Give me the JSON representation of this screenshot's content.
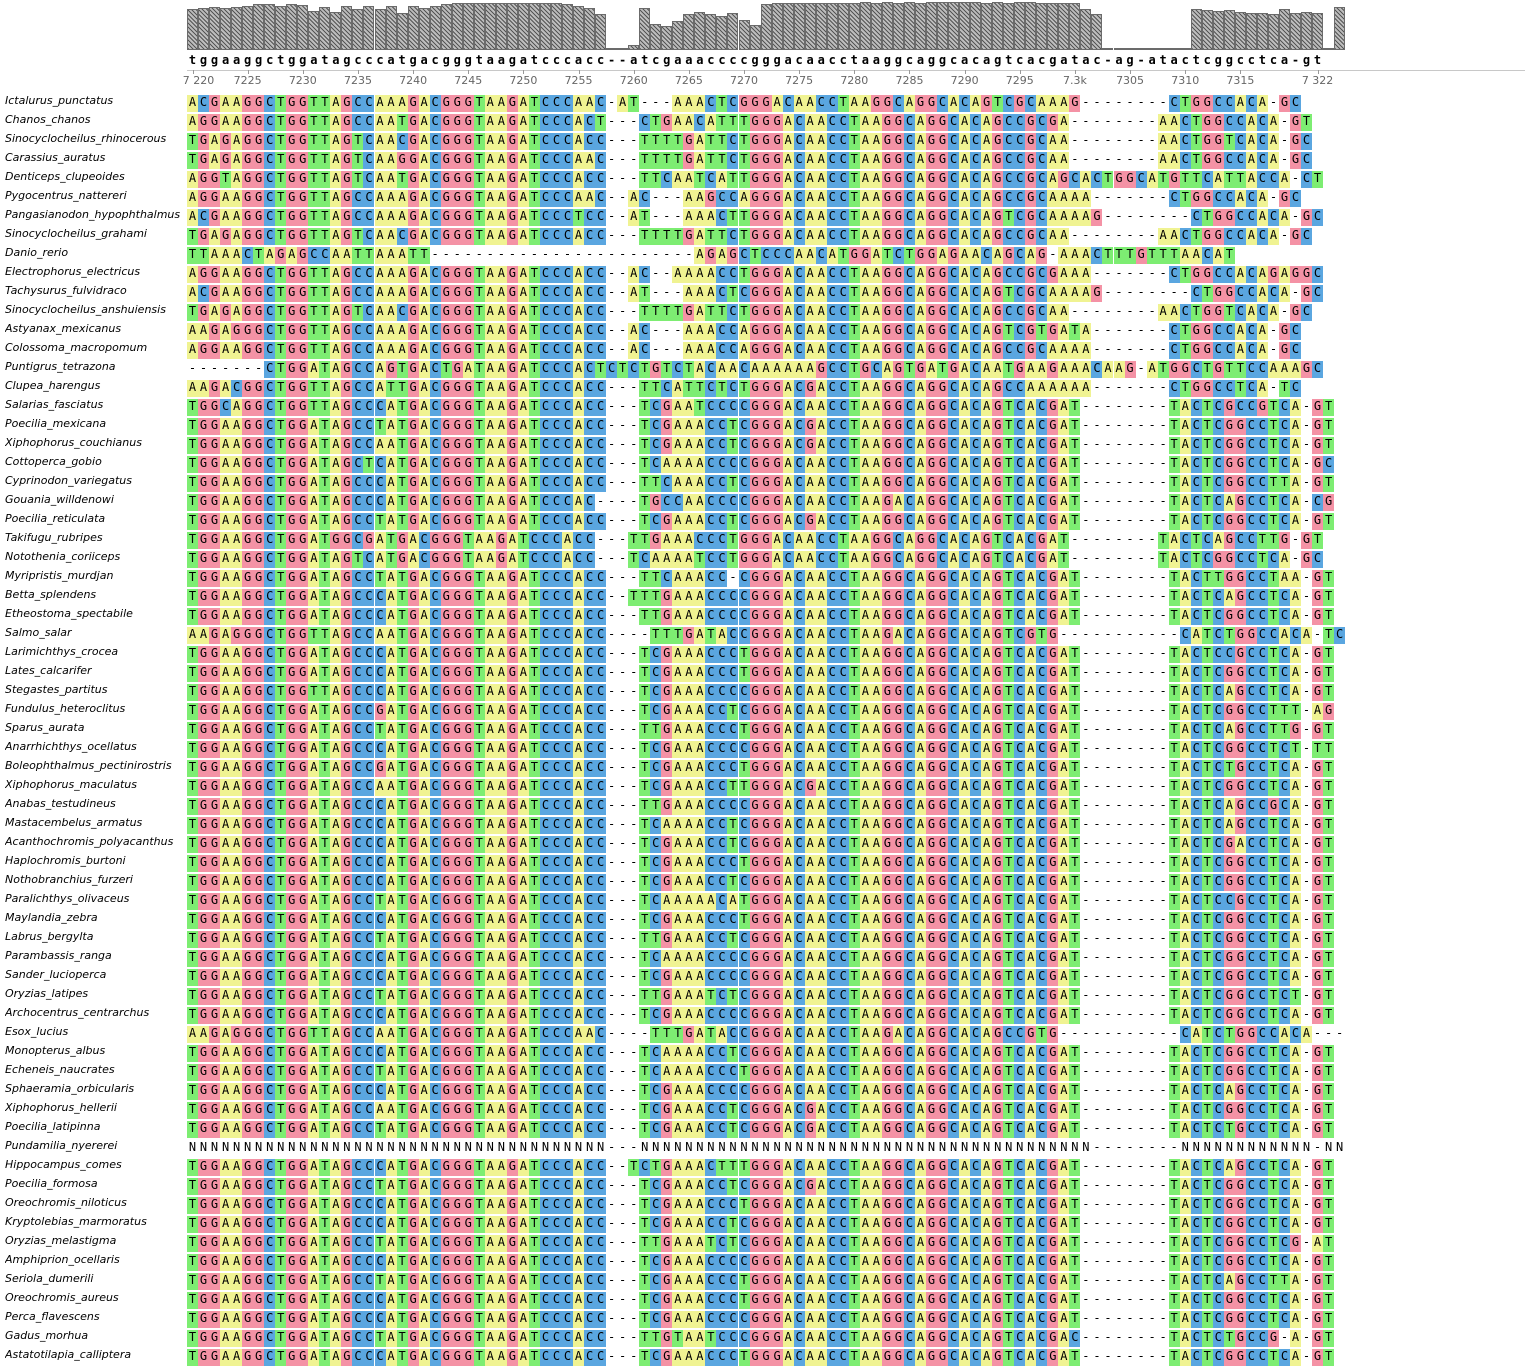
{
  "app": {
    "view": "multiple-sequence-alignment",
    "colors": {
      "A": "#f0f392",
      "C": "#5aa6e0",
      "G": "#f492a5",
      "T": "#7ded72",
      "N": "#ffffff",
      "-": "#ffffff"
    }
  },
  "ruler": {
    "labels": [
      {
        "pos": 7220,
        "label": "7 220"
      },
      {
        "pos": 7225,
        "label": "7225"
      },
      {
        "pos": 7230,
        "label": "7230"
      },
      {
        "pos": 7235,
        "label": "7235"
      },
      {
        "pos": 7240,
        "label": "7240"
      },
      {
        "pos": 7245,
        "label": "7245"
      },
      {
        "pos": 7250,
        "label": "7250"
      },
      {
        "pos": 7255,
        "label": "7255"
      },
      {
        "pos": 7260,
        "label": "7260"
      },
      {
        "pos": 7265,
        "label": "7265"
      },
      {
        "pos": 7270,
        "label": "7270"
      },
      {
        "pos": 7275,
        "label": "7275"
      },
      {
        "pos": 7280,
        "label": "7280"
      },
      {
        "pos": 7285,
        "label": "7285"
      },
      {
        "pos": 7290,
        "label": "7290"
      },
      {
        "pos": 7295,
        "label": "7295"
      },
      {
        "pos": 7300,
        "label": "7.3k"
      },
      {
        "pos": 7305,
        "label": "7305"
      },
      {
        "pos": 7310,
        "label": "7310"
      },
      {
        "pos": 7315,
        "label": "7315"
      },
      {
        "pos": 7322,
        "label": "7 322"
      }
    ],
    "start": 7220
  },
  "consensus": "tggaaggctggatagcccatgacgggtaagatcccacc--atcgaaaccccgggacaacctaaggcaggcacagtcacgatac-ag-atactcggcctca-gt",
  "conservation": [
    0.85,
    0.88,
    0.9,
    0.88,
    0.9,
    0.92,
    0.95,
    0.95,
    0.92,
    0.95,
    0.93,
    0.82,
    0.9,
    0.8,
    0.92,
    0.85,
    0.92,
    0.85,
    0.92,
    0.78,
    0.92,
    0.88,
    0.92,
    0.95,
    0.98,
    0.98,
    0.97,
    0.98,
    0.97,
    0.98,
    0.98,
    0.98,
    0.97,
    0.98,
    0.95,
    0.92,
    0.88,
    0.75,
    0.02,
    0.02,
    0.1,
    0.88,
    0.55,
    0.5,
    0.6,
    0.75,
    0.8,
    0.75,
    0.7,
    0.78,
    0.62,
    0.52,
    0.95,
    0.97,
    0.98,
    0.97,
    0.98,
    0.97,
    0.98,
    0.97,
    0.98,
    0.99,
    0.98,
    0.99,
    0.98,
    0.99,
    0.98,
    0.99,
    1.0,
    0.99,
    1.0,
    0.99,
    0.98,
    1.0,
    0.98,
    1.0,
    1.0,
    0.98,
    0.97,
    0.98,
    0.98,
    0.85,
    0.75,
    0.02,
    0.02,
    0.02,
    0.02,
    0.02,
    0.02,
    0.02,
    0.02,
    0.85,
    0.83,
    0.82,
    0.83,
    0.8,
    0.78,
    0.78,
    0.75,
    0.85,
    0.78,
    0.8,
    0.78,
    0.02,
    0.9
  ],
  "sequences": [
    {
      "name": "Ictalurus_punctatus",
      "seq": "ACGAAGGCTGGTTAGCCAAAGACGGGTAAGATCCCAAC-AT---AAACTCGGGACAACCTAAGGCAGGCACAGTCGCAAAG--------CTGGCCACA-GC"
    },
    {
      "name": "Chanos_chanos",
      "seq": "AGGAAGGCTGGTTAGCCAATGACGGGTAAGATCCCACT---CTGAACATTTGGGACAACCTAAGGCAGGCACAGCCGCGA--------AACTGGCCACA-GT"
    },
    {
      "name": "Sinocyclocheilus_rhinocerous",
      "seq": "TGAGAGGCTGGTTAGTCAACGACGGGTAAGATCCCACC---TTTTGATTCTGGGACAACCTAAGGCAGGCACAGCCGCAA--------AACTGGTCACA-GC"
    },
    {
      "name": "Carassius_auratus",
      "seq": "TGAGAGGCTGGTTAGTCAAGGACGGGTAAGATCCCAAC---TTTTGATTCTGGGACAACCTAAGGCAGGCACAGCCGCAA--------AACTGGCCACA-GC"
    },
    {
      "name": "Denticeps_clupeoides",
      "seq": "AGGTAGGCTGGTTAGTCAATGACGGGTAAGATCCCACC---TTCAATCATTGGGACAACCTAAGGCAGGCACAGCCGCAGCACTGGCATGTTCATTACCA-CT"
    },
    {
      "name": "Pygocentrus_nattereri",
      "seq": "AGGAAGGCTGGTTAGCCAAAGACGGGTAAGATCCCAAC--AC---AAGCCAGGGACAACCTAAGGCAGGCACAGCCGCAAAA-------CTGGCCACA-GC"
    },
    {
      "name": "Pangasianodon_hypophthalmus",
      "seq": "ACGAAGGCTGGTTAGCCAAAGACGGGTAAGATCCCTCC--AT---AAACTTGGGACAACCTAAGGCAGGCACAGTCGCAAAAG--------CTGGCCACA-GC"
    },
    {
      "name": "Sinocyclocheilus_grahami",
      "seq": "TGAGAGGCTGGTTAGTCAACGACGGGTAAGATCCCACC---TTTTGATTCTGGGACAACCTAAGGCAGGCACAGCCGCAA--------AACTGGCCACA-GC"
    },
    {
      "name": "Danio_rerio",
      "seq": "TTAAACTAGAGCCAATTAAATT------------------------AGAGCTCCCAACATGGATCTGGAGAACAGCAG-AAACTTTGTTTAACAT"
    },
    {
      "name": "Electrophorus_electricus",
      "seq": "AGGAAGGCTGGTTAGCCAAAGACGGGTAAGATCCCACC--AC--AAAACCTGGGACAACCTAAGGCAGGCACAGCCGCGAAA-------CTGGCCACAGAGGC"
    },
    {
      "name": "Tachysurus_fulvidraco",
      "seq": "ACGAAGGCTGGTTAGCCAAAGACGGGTAAGATCCCACC--AT---AAACTCGGGACAACCTAAGGCAGGCACAGTCGCAAAAG--------CTGGCCACA-GC"
    },
    {
      "name": "Sinocyclocheilus_anshuiensis",
      "seq": "TGAGAGGCTGGTTAGTCAACGACGGGTAAGATCCCACC---TTTTGATTCTGGGACAACCTAAGGCAGGCACAGCCGCAA--------AACTGGTCACA-GC"
    },
    {
      "name": "Astyanax_mexicanus",
      "seq": "AAGAGGGCTGGTTAGCCAAAGACGGGTAAGATCCCACC--AC---AAACCAGGGACAACCTAAGGCAGGCACAGTCGTGATA-------CTGGCCACA-GC"
    },
    {
      "name": "Colossoma_macropomum",
      "seq": "AGGAAGGCTGGTTAGCCAAAGACGGGTAAGATCCCACC--AC---AAACCAGGGACAACCTAAGGCAGGCACAGCCGCAAAA-------CTGGCCACA-GC"
    },
    {
      "name": "Puntigrus_tetrazona",
      "seq": "-------CTGGATAGCCAGTGACTGATAAGATCCCACTCTCTGTCTACAACAAAAAAGCCTGCAGTGATGACAATGAAGAAACAAG-ATGGCTGTTCCAAAGC"
    },
    {
      "name": "Clupea_harengus",
      "seq": "AAGACGGCTGGTTAGCCATTGACGGGTAAGATCCCACC---TTCATTCTCTGGGACGACCTAAGGCAGGCACAGCCAAAAAA-------CTGGCCTCA-TC"
    },
    {
      "name": "Salarias_fasciatus",
      "seq": "TGGCAGGCTGGTTAGCCCATGACGGGTAAGATCCCACC---TCGAATCCCCGGGACAACCTAAGGCAGGCACAGTCACGAT--------TACTCGCCGTCA-GT"
    },
    {
      "name": "Poecilia_mexicana",
      "seq": "TGGAAGGCTGGATAGCCTATGACGGGTAAGATCCCACC---TCGAAACCTCGGGACGACCTAAGGCAGGCACAGTCACGAT--------TACTCGGCCTCA-GT"
    },
    {
      "name": "Xiphophorus_couchianus",
      "seq": "TGGAAGGCTGGATAGCCAATGACGGGTAAGATCCCACC---TCGAAACCTCGGGACGACCTAAGGCAGGCACAGTCACGAT--------TACTCGGCCTCA-GT"
    },
    {
      "name": "Cottoperca_gobio",
      "seq": "TGGAAGGCTGGATAGCTCATGACGGGTAAGATCCCACC---TCAAAACCCCGGGACAACCTAAGGCAGGCACAGTCACGAT--------TACTCGGCCTCA-GC"
    },
    {
      "name": "Cyprinodon_variegatus",
      "seq": "TGGAAGGCTGGATAGCCCATGACGGGTAAGATCCCACC---TTCAAACCTCGGGACAACCTAAGGCAGGCACAGTCACGAT--------TACTCGGCCTTA-GT"
    },
    {
      "name": "Gouania_willdenowi",
      "seq": "TGGAAGGCTGGATAGCCCATGACGGGTAAGATCCCAC----TGCCAACCCCGGGACAACCTAAGACAGGCACAGTCACGAT--------TACTCAGCCTCA-CG"
    },
    {
      "name": "Poecilia_reticulata",
      "seq": "TGGAAGGCTGGATAGCCTATGACGGGTAAGATCCCACC---TCGAAACCTCGGGACGACCTAAGGCAGGCACAGTCACGAT--------TACTCGGCCTCA-GT"
    },
    {
      "name": "Takifugu_rubripes",
      "seq": "TGGAAGGCTGGATGGCGATGACGGGTAAGATCCCACC---TTGAAACCCTGGGACAACCTAAGGCAGGCACAGTCACGAT--------TACTCAGCCTTG-GT"
    },
    {
      "name": "Notothenia_coriiceps",
      "seq": "TGGAAGGCTGGATAGTCATGACGGGTAAGATCCCACC---TCAAAATCCTGGGACAACCTAAGGCAGGCACAGTCACGAT--------TACTCGGCCTCA-GC"
    },
    {
      "name": "Myripristis_murdjan",
      "seq": "TGGAAGGCTGGATAGCCTATGACGGGTAAGATCCCACC---TTCAAACC-CGGGACAACCTAAGGCAGGCACAGTCACGAT--------TACTTGGCCTAA-GT"
    },
    {
      "name": "Betta_splendens",
      "seq": "TGGAAGGCTGGATAGCCCATGACGGGTAAGATCCCACC--TTTGAAACCCCGGGACAACCTAAGGCAGGCACAGTCACGAT--------TACTCAGCCTCA-GT"
    },
    {
      "name": "Etheostoma_spectabile",
      "seq": "TGGAAGGCTGGATAGCCCATGACGGGTAAGATCCCACC---TTGAAACCCCGGGACAACCTAAGGCAGGCACAGTCACGAT--------TACTCGGCCTCA-GT"
    },
    {
      "name": "Salmo_salar",
      "seq": "AAGAGGGCTGGTTAGCCAATGACGGGTAAGATCCCACC----TTTGATACCGGGACAACCTAAGACAGGCACAGTCGTG-----------CATCTGGCCACA-TC"
    },
    {
      "name": "Larimichthys_crocea",
      "seq": "TGGAAGGCTGGATAGCCCATGACGGGTAAGATCCCACC---TCGAAACCCTGGGACAACCTAAGGCAGGCACAGTCACGAT--------TACTCCGCCTCA-GT"
    },
    {
      "name": "Lates_calcarifer",
      "seq": "TGGAAGGCTGGATAGCCCATGACGGGTAAGATCCCACC---TCGAAACCCTGGGACAACCTAAGGCAGGCACAGTCACGAT--------TACTCGGCCTCA-GT"
    },
    {
      "name": "Stegastes_partitus",
      "seq": "TGGAAGGCTGGTTAGCCCATGACGGGTAAGATCCCACC---TCGAAACCCCGGGACAACCTAAGGCAGGCACAGTCACGAT--------TACTCAGCCTCA-GT"
    },
    {
      "name": "Fundulus_heteroclitus",
      "seq": "TGGAAGGCTGGATAGCCGATGACGGGTAAGATCCCACC---TCGAAACCTCGGGACAACCTAAGGCAGGCACAGTCACGAT--------TACTCGGCCTTT-AG"
    },
    {
      "name": "Sparus_aurata",
      "seq": "TGGAAGGCTGGATAGCCTATGACGGGTAAGATCCCACC---TTGAAACCCTGGGACAACCTAAGGCAGGCACAGTCACGAT--------TACTCAGCCTTG-GT"
    },
    {
      "name": "Anarrhichthys_ocellatus",
      "seq": "TGGAAGGCTGGATAGCCCATGACGGGTAAGATCCCACC---TCGAAACCCCGGGACAACCTAAGGCAGGCACAGTCACGAT--------TACTCGGCCTCT-TT"
    },
    {
      "name": "Boleophthalmus_pectinirostris",
      "seq": "TGGAAGGCTGGATAGCCGATGACGGGTAAGATCCCACC---TCGAAACCCTGGGACAACCTAAGGCAGGCACAGTCACGAT--------TACTCTGCCTCA-GT"
    },
    {
      "name": "Xiphophorus_maculatus",
      "seq": "TGGAAGGCTGGATAGCCAATGACGGGTAAGATCCCACC---TCGAAACCTTGGGACGACCTAAGGCAGGCACAGTCACGAT--------TACTCGGCCTCA-GT"
    },
    {
      "name": "Anabas_testudineus",
      "seq": "TGGAAGGCTGGATAGCCCATGACGGGTAAGATCCCACC---TTGAAACCCCGGGACAACCTAAGGCAGGCACAGTCACGAT--------TACTCAGCCGCA-GT"
    },
    {
      "name": "Mastacembelus_armatus",
      "seq": "TGGAAGGCTGGATAGCCCATGACGGGTAAGATCCCACC---TCAAAACCTCGGGACAACCTAAGGCAGGCACAGTCACGAT--------TACTCAGCCTCA-GT"
    },
    {
      "name": "Acanthochromis_polyacanthus",
      "seq": "TGGAAGGCTGGATAGCCCATGACGGGTAAGATCCCACC---TCGAAACCTCGGGACAACCTAAGGCAGGCACAGTCACGAT--------TACTCGACCTCA-GT"
    },
    {
      "name": "Haplochromis_burtoni",
      "seq": "TGGAAGGCTGGATAGCCCATGACGGGTAAGATCCCACC---TCGAAACCCTGGGACAACCTAAGGCAGGCACAGTCACGAT--------TACTCGGCCTCA-GT"
    },
    {
      "name": "Nothobranchius_furzeri",
      "seq": "TGGAAGGCTGGATAGCCCATGACGGGTAAGATCCCACC---TCGAAACCTCGGGACAACCTAAGGCAGGCACAGTCACGAT--------TACTCGGCCTCA-GT"
    },
    {
      "name": "Paralichthys_olivaceus",
      "seq": "TGGAAGGCTGGATAGCCTATGACGGGTAAGATCCCACC---TCAAAAACATGGGACAACCTAAGGCAGGCACAGTCACGAT--------TACTCCGCCTCA-GT"
    },
    {
      "name": "Maylandia_zebra",
      "seq": "TGGAAGGCTGGATAGCCCATGACGGGTAAGATCCCACC---TCGAAACCCTGGGACAACCTAAGGCAGGCACAGTCACGAT--------TACTCGGCCTCA-GT"
    },
    {
      "name": "Labrus_bergylta",
      "seq": "TGGAAGGCTGGATAGCCTATGACGGGTAAGATCCCACC---TTGAAACCTCGGGACAACCTAAGGCAGGCACAGTCACGAT--------TACTCGGCCTCA-GT"
    },
    {
      "name": "Parambassis_ranga",
      "seq": "TGGAAGGCTGGATAGCCCATGACGGGTAAGATCCCACC---TCAAAACCCCGGGACAACCTAAGGCAGGCACAGTCACGAT--------TACTCGGCCTCA-GT"
    },
    {
      "name": "Sander_lucioperca",
      "seq": "TGGAAGGCTGGATAGCCCATGACGGGTAAGATCCCACC---TCGAAACCCCGGGACAACCTAAGGCAGGCACAGTCACGAT--------TACTCGGCCTCA-GT"
    },
    {
      "name": "Oryzias_latipes",
      "seq": "TGGAAGGCTGGATAGCCTATGACGGGTAAGATCCCACC---TTGAAATCTCGGGACAACCTAAGGCAGGCACAGTCACGAT--------TACTCGGCCTCT-GT"
    },
    {
      "name": "Archocentrus_centrarchus",
      "seq": "TGGAAGGCTGGATAGCCCATGACGGGTAAGATCCCACC---TCGAAACCCCGGGACAACCTAAGGCAGGCACAGTCACGAT--------TACTCGGCCTCA-GT"
    },
    {
      "name": "Esox_lucius",
      "seq": "AAGAGGGCTGGTTAGCCAATGACGGGTAAGATCCCAAC----TTTGATACCGGGACAACCTAAGACAGGCACAGCCGTG-----------CATCTGGCCACA---"
    },
    {
      "name": "Monopterus_albus",
      "seq": "TGGAAGGCTGGATAGCCCATGACGGGTAAGATCCCACC---TCAAAACCTCGGGACAACCTAAGGCAGGCACAGTCACGAT--------TACTCGGCCTCA-GT"
    },
    {
      "name": "Echeneis_naucrates",
      "seq": "TGGAAGGCTGGATAGCCTATGACGGGTAAGATCCCACC---TCAAAACCCTGGGACAACCTAAGGCAGGCACAGTCACGAT--------TACTCGGCCTCA-GT"
    },
    {
      "name": "Sphaeramia_orbicularis",
      "seq": "TGGAAGGCTGGATAGCCCATGACGGGTAAGATCCCACC---TCGAAACCCCGGGACAACCTAAGGCAGGCACAGTCACGAT--------TACTCAGCCTCA-GT"
    },
    {
      "name": "Xiphophorus_hellerii",
      "seq": "TGGAAGGCTGGATAGCCAATGACGGGTAAGATCCCACC---TCGAAACCTCGGGACGACCTAAGGCAGGCACAGTCACGAT--------TACTCGGCCTCA-GT"
    },
    {
      "name": "Poecilia_latipinna",
      "seq": "TGGAAGGCTGGATAGCCTATGACGGGTAAGATCCCACC---TCGAAACCTCGGGACGACCTAAGGCAGGCACAGTCACGAT--------TACTCTGCCTCA-GT"
    },
    {
      "name": "Pundamilia_nyererei",
      "seq": "NNNNNNNNNNNNNNNNNNNNNNNNNNNNNNNNNNNNNN---NNNNNNNNNNNNNNNNNNNNNNNNNNNNNNNNNNNNNNNNN--------NNNNNNNNNNNN-NN"
    },
    {
      "name": "Hippocampus_comes",
      "seq": "TGGAAGGCTGGATAGCCCATGACGGGTAAGATCCCACC--TCTGAAACTTTGGGACAACCTAAGGCAGGCACAGTCACGAT--------TACTCAGCCTCA-GT"
    },
    {
      "name": "Poecilia_formosa",
      "seq": "TGGAAGGCTGGATAGCCTATGACGGGTAAGATCCCACC---TCGAAACCTCGGGACGACCTAAGGCAGGCACAGTCACGAT--------TACTCGGCCTCA-GT"
    },
    {
      "name": "Oreochromis_niloticus",
      "seq": "TGGAAGGCTGGATAGCCCATGACGGGTAAGATCCCACC---TCGAAACCCTGGGACAACCTAAGGCAGGCACAGTCACGAT--------TACTCGGCCTCA-GT"
    },
    {
      "name": "Kryptolebias_marmoratus",
      "seq": "TGGAAGGCTGGATAGCCCATGACGGGTAAGATCCCACC---TCGAAACCTCGGGACAACCTAAGGCAGGCACAGTCACGAT--------TACTCGGCCTCA-GT"
    },
    {
      "name": "Oryzias_melastigma",
      "seq": "TGGAAGGCTGGATAGCCTATGACGGGTAAGATCCCACC---TTGAAATCTCGGGACAACCTAAGGCAGGCACAGTCACGAT--------TACTCGGCCTCG-AT"
    },
    {
      "name": "Amphiprion_ocellaris",
      "seq": "TGGAAGGCTGGATAGCCCATGACGGGTAAGATCCCACC---TCGAAACCCCGGGACAACCTAAGGCAGGCACAGTCACGAT--------TACTCGGCCTCA-GT"
    },
    {
      "name": "Seriola_dumerili",
      "seq": "TGGAAGGCTGGATAGCCTATGACGGGTAAGATCCCACC---TCGAAACCCTGGGACAACCTAAGGCAGGCACAGTCACGAT--------TACTCAGCCTTA-GT"
    },
    {
      "name": "Oreochromis_aureus",
      "seq": "TGGAAGGCTGGATAGCCCATGACGGGTAAGATCCCACC---TCGAAACCCTGGGACAACCTAAGGCAGGCACAGTCACGAT--------TACTCGGCCTCA-GT"
    },
    {
      "name": "Perca_flavescens",
      "seq": "TGGAAGGCTGGATAGCCCATGACGGGTAAGATCCCACC---TCGAAACCCCGGGACAACCTAAGGCAGGCACAGTCACGAT--------TACTCGGCCTCA-GT"
    },
    {
      "name": "Gadus_morhua",
      "seq": "TGGAAGGCTGGATAGCCTATGACGGGTAAGATCCCACC---TTGTAATCCCGGGACAACCTAAGGCAGGCACAGTCACGAC--------TACTCTGCCG-A-GT"
    },
    {
      "name": "Astatotilapia_calliptera",
      "seq": "TGGAAGGCTGGATAGCCCATGACGGGTAAGATCCCACC---TCGAAACCCTGGGACAACCTAAGGCAGGCACAGTCACGAT--------TACTCGGCCTCA-GT"
    }
  ]
}
